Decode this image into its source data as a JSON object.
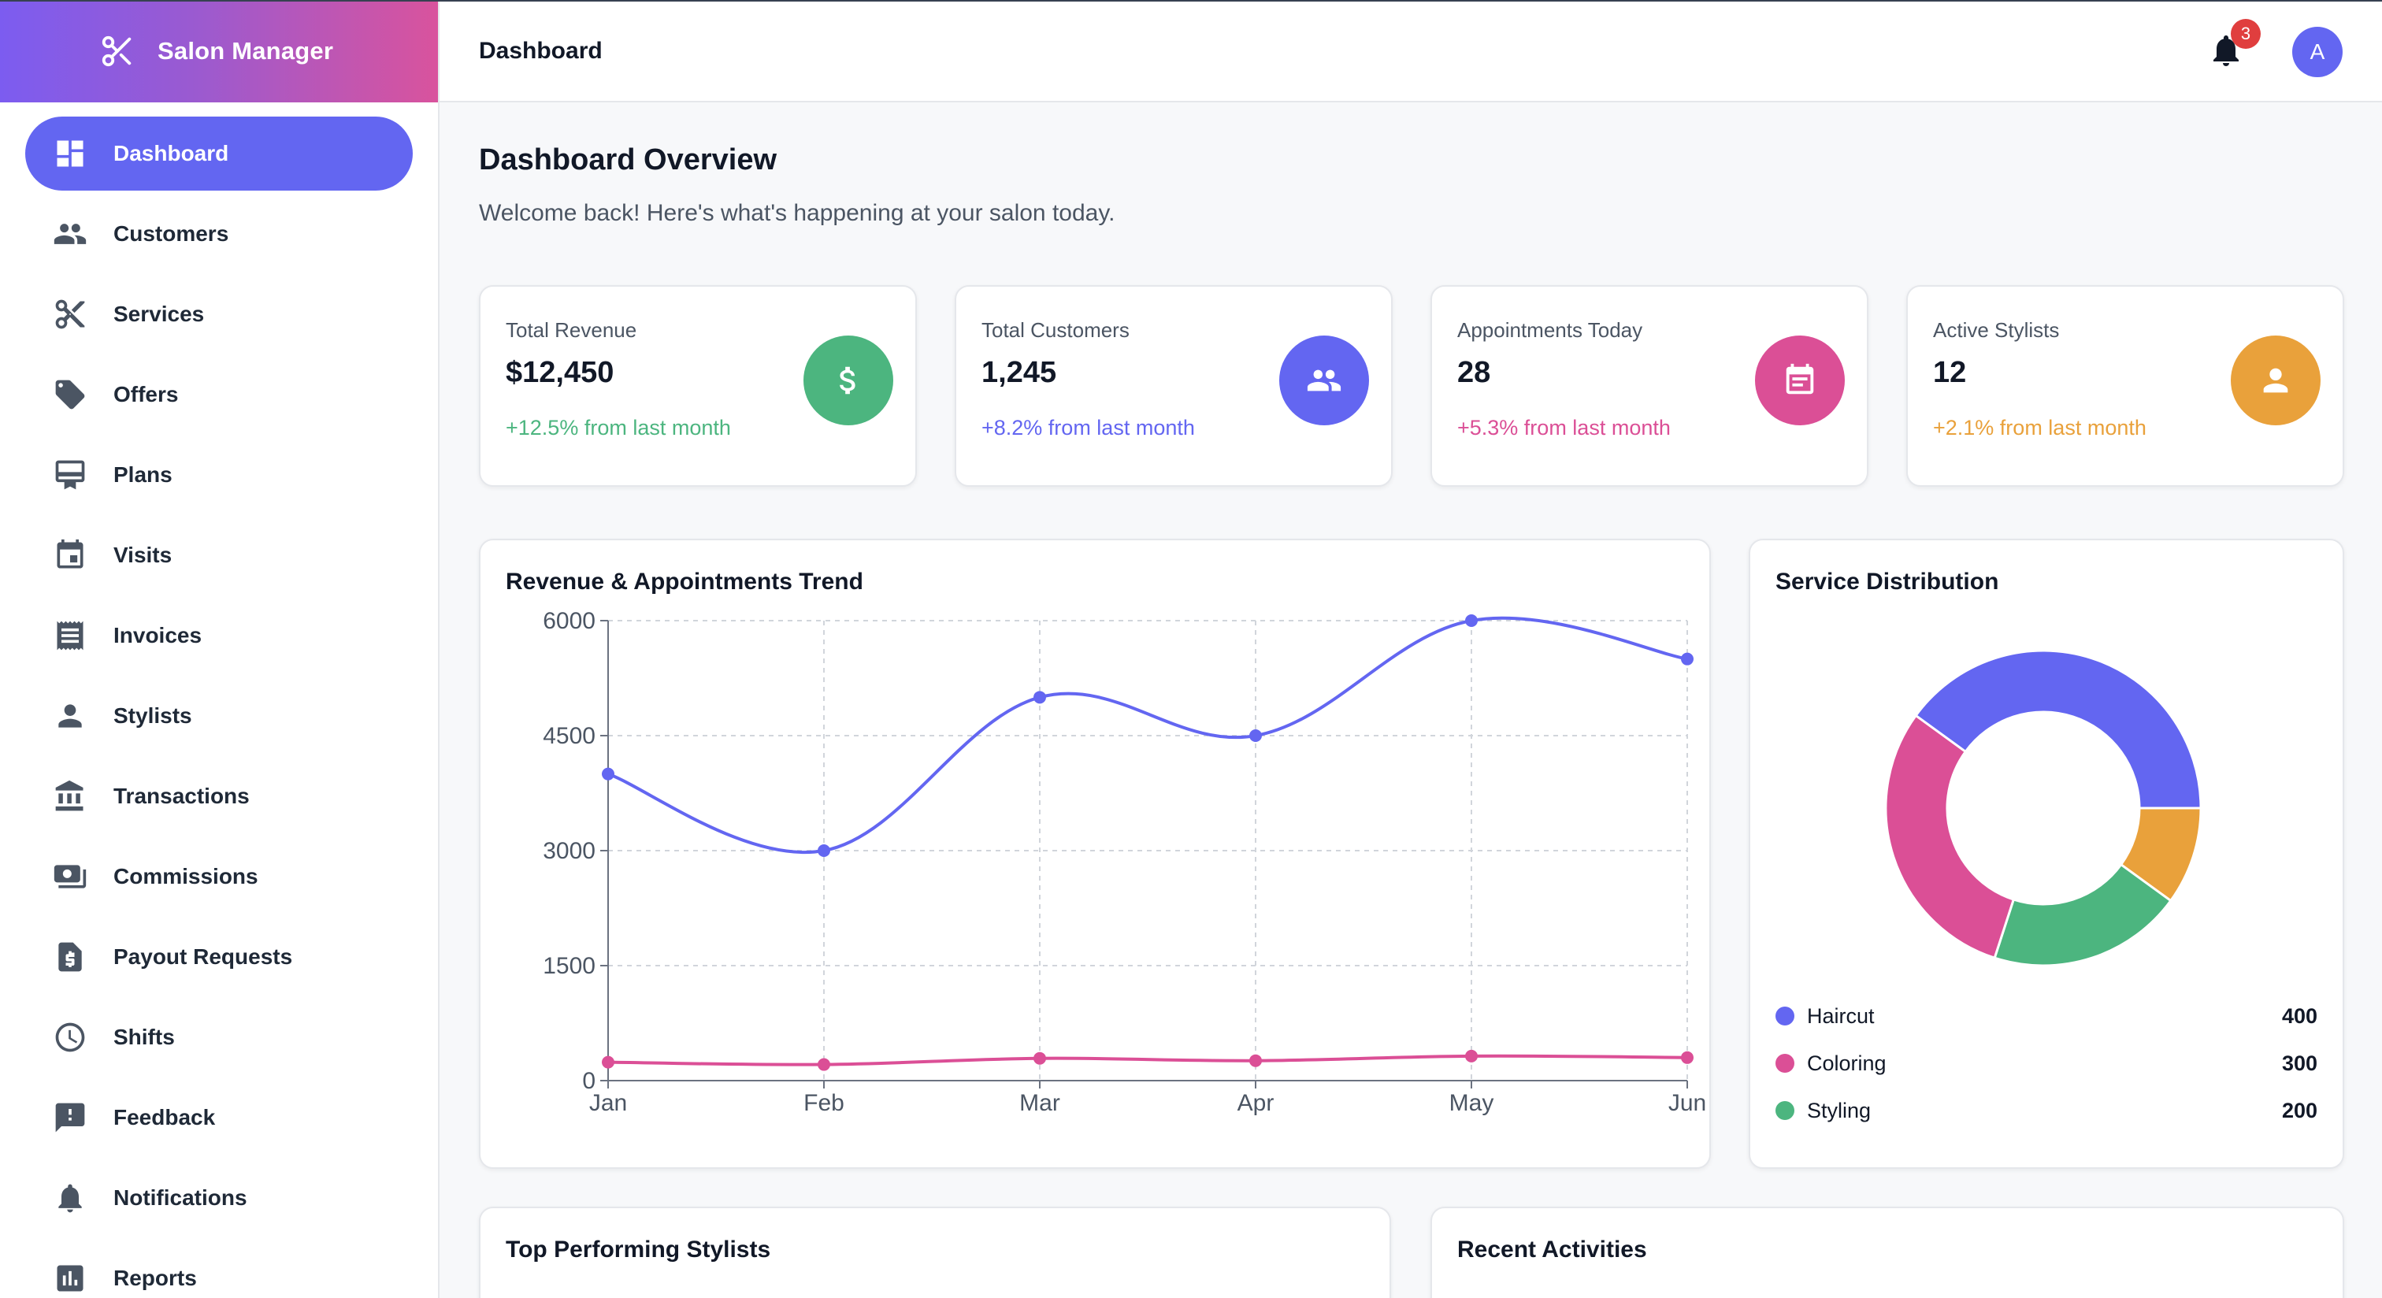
{
  "brand": {
    "name": "Salon Manager"
  },
  "sidebar": {
    "items": [
      {
        "label": "Dashboard",
        "icon": "dashboard-icon",
        "active": true
      },
      {
        "label": "Customers",
        "icon": "people-icon"
      },
      {
        "label": "Services",
        "icon": "scissors-icon"
      },
      {
        "label": "Offers",
        "icon": "tag-icon"
      },
      {
        "label": "Plans",
        "icon": "card-icon"
      },
      {
        "label": "Visits",
        "icon": "calendar-icon"
      },
      {
        "label": "Invoices",
        "icon": "receipt-icon"
      },
      {
        "label": "Stylists",
        "icon": "person-icon"
      },
      {
        "label": "Transactions",
        "icon": "bank-icon"
      },
      {
        "label": "Commissions",
        "icon": "money-icon"
      },
      {
        "label": "Payout Requests",
        "icon": "document-dollar-icon"
      },
      {
        "label": "Shifts",
        "icon": "clock-icon"
      },
      {
        "label": "Feedback",
        "icon": "feedback-icon"
      },
      {
        "label": "Notifications",
        "icon": "bell-icon"
      },
      {
        "label": "Reports",
        "icon": "bar-chart-icon"
      }
    ]
  },
  "header": {
    "title": "Dashboard",
    "notification_count": "3",
    "avatar_initial": "A"
  },
  "main": {
    "title": "Dashboard Overview",
    "subtitle": "Welcome back! Here's what's happening at your salon today."
  },
  "stats": [
    {
      "label": "Total Revenue",
      "value": "$12,450",
      "change": "+12.5% from last month",
      "color": "#4cb57f",
      "icon": "dollar-icon"
    },
    {
      "label": "Total Customers",
      "value": "1,245",
      "change": "+8.2% from last month",
      "color": "#6366f1",
      "icon": "people-icon"
    },
    {
      "label": "Appointments Today",
      "value": "28",
      "change": "+5.3% from last month",
      "color": "#db4f96",
      "icon": "calendar-icon"
    },
    {
      "label": "Active Stylists",
      "value": "12",
      "change": "+2.1% from last month",
      "color": "#e9a13b",
      "icon": "person-icon"
    }
  ],
  "trend_card": {
    "title": "Revenue & Appointments Trend"
  },
  "distribution_card": {
    "title": "Service Distribution"
  },
  "bottom": {
    "stylists_title": "Top Performing Stylists",
    "activities_title": "Recent Activities"
  },
  "chart_data": [
    {
      "type": "line",
      "title": "Revenue & Appointments Trend",
      "categories": [
        "Jan",
        "Feb",
        "Mar",
        "Apr",
        "May",
        "Jun"
      ],
      "ylim": [
        0,
        6000
      ],
      "yticks": [
        "0",
        "1500",
        "3000",
        "4500",
        "6000"
      ],
      "grid": true,
      "series": [
        {
          "values": [
            4000,
            3000,
            5000,
            4500,
            6000,
            5500
          ],
          "color": "#6366f1"
        },
        {
          "values": [
            240,
            210,
            290,
            260,
            320,
            300
          ],
          "color": "#db4f96"
        }
      ]
    },
    {
      "type": "pie",
      "title": "Service Distribution",
      "donut": true,
      "slices": [
        {
          "label": "Haircut",
          "value": 400,
          "color": "#6366f1"
        },
        {
          "label": "Coloring",
          "value": 300,
          "color": "#db4f96"
        },
        {
          "label": "Styling",
          "value": 200,
          "color": "#4cb57f"
        },
        {
          "value": 100,
          "color": "#e9a13b"
        }
      ]
    }
  ]
}
